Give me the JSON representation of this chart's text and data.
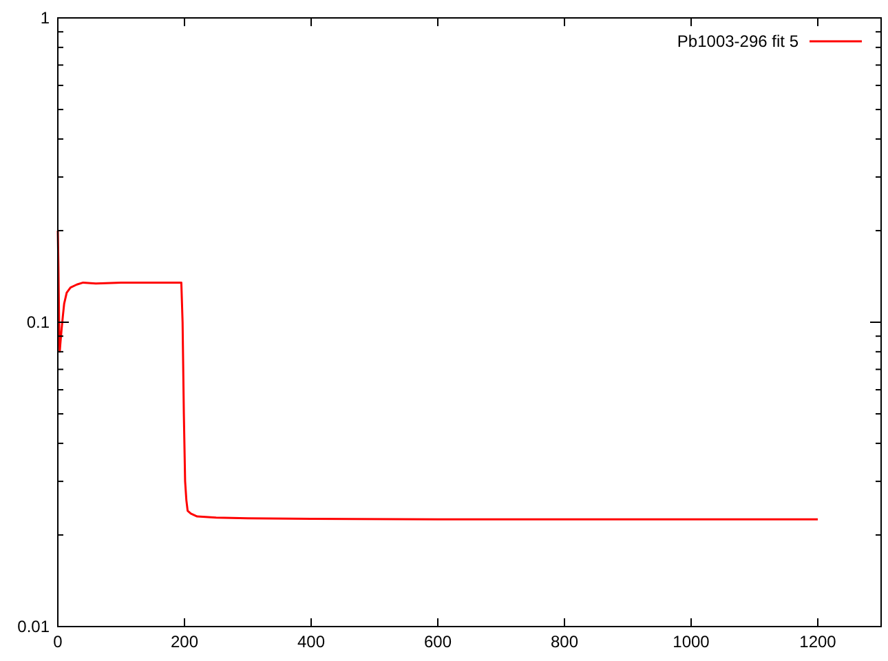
{
  "chart_data": {
    "type": "line",
    "log": "y",
    "xlim": [
      0,
      1300
    ],
    "ylim": [
      0.01,
      1
    ],
    "xticks": [
      0,
      200,
      400,
      600,
      800,
      1000,
      1200
    ],
    "yticks": [
      0.01,
      0.1,
      1
    ],
    "legend": "top right",
    "grid": false,
    "line_style": "solid",
    "series": [
      {
        "name": "Pb1003-296 fit 5",
        "color": "#ff0000",
        "x": [
          0,
          1,
          2,
          3,
          4,
          6,
          8,
          10,
          14,
          20,
          30,
          40,
          60,
          100,
          150,
          195,
          197,
          199,
          201,
          203,
          205,
          210,
          220,
          250,
          300,
          400,
          600,
          800,
          1000,
          1200
        ],
        "values": [
          0.2,
          0.15,
          0.1,
          0.08,
          0.085,
          0.095,
          0.105,
          0.115,
          0.125,
          0.13,
          0.133,
          0.135,
          0.134,
          0.135,
          0.135,
          0.135,
          0.1,
          0.05,
          0.03,
          0.026,
          0.024,
          0.0235,
          0.023,
          0.0228,
          0.0227,
          0.0226,
          0.0225,
          0.0225,
          0.0225,
          0.0225
        ]
      }
    ]
  }
}
